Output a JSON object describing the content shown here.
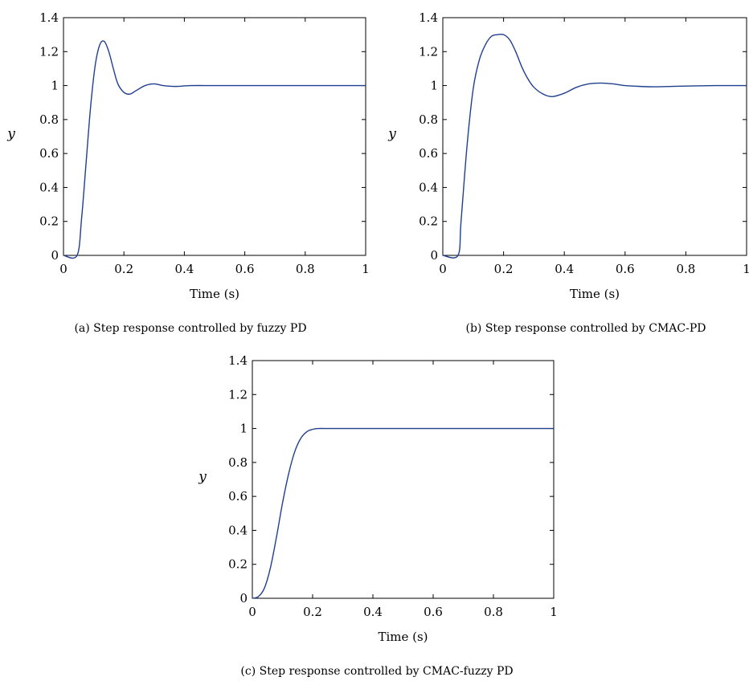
{
  "chart_data": [
    {
      "type": "line",
      "xlabel": "Time (s)",
      "ylabel": "y",
      "xlim": [
        0,
        1
      ],
      "ylim": [
        0,
        1.4
      ],
      "xticks": [
        "0",
        "0.2",
        "0.4",
        "0.6",
        "0.8",
        "1"
      ],
      "yticks": [
        "0",
        "0.2",
        "0.4",
        "0.6",
        "0.8",
        "1",
        "1.2",
        "1.4"
      ],
      "caption": "(a)  Step response controlled by fuzzy PD",
      "line_color": "#1f3f8f",
      "series": [
        {
          "x": [
            0,
            0.045,
            0.06,
            0.075,
            0.09,
            0.105,
            0.12,
            0.135,
            0.15,
            0.165,
            0.18,
            0.2,
            0.22,
            0.24,
            0.27,
            0.3,
            0.33,
            0.37,
            0.42,
            0.5,
            0.6,
            0.7,
            0.8,
            0.9,
            1.0
          ],
          "y": [
            0,
            0,
            0.22,
            0.55,
            0.88,
            1.12,
            1.24,
            1.26,
            1.2,
            1.1,
            1.01,
            0.96,
            0.95,
            0.97,
            1.0,
            1.01,
            1.0,
            0.995,
            1.0,
            1.0,
            1.0,
            1.0,
            1.0,
            1.0,
            1.0
          ]
        }
      ]
    },
    {
      "type": "line",
      "xlabel": "Time (s)",
      "ylabel": "y",
      "xlim": [
        0,
        1
      ],
      "ylim": [
        0,
        1.4
      ],
      "xticks": [
        "0",
        "0.2",
        "0.4",
        "0.6",
        "0.8",
        "1"
      ],
      "yticks": [
        "0",
        "0.2",
        "0.4",
        "0.6",
        "0.8",
        "1",
        "1.2",
        "1.4"
      ],
      "caption": "(b)  Step response controlled by CMAC-PD",
      "line_color": "#1f3f8f",
      "series": [
        {
          "x": [
            0,
            0.05,
            0.06,
            0.08,
            0.1,
            0.12,
            0.14,
            0.16,
            0.18,
            0.2,
            0.22,
            0.24,
            0.26,
            0.28,
            0.3,
            0.33,
            0.36,
            0.4,
            0.44,
            0.48,
            0.52,
            0.56,
            0.6,
            0.65,
            0.7,
            0.8,
            0.9,
            1.0
          ],
          "y": [
            0,
            0,
            0.2,
            0.65,
            0.98,
            1.15,
            1.24,
            1.29,
            1.3,
            1.3,
            1.27,
            1.2,
            1.11,
            1.04,
            0.99,
            0.95,
            0.935,
            0.955,
            0.99,
            1.01,
            1.015,
            1.01,
            1.0,
            0.995,
            0.993,
            0.997,
            1.0,
            1.0
          ]
        }
      ]
    },
    {
      "type": "line",
      "xlabel": "Time (s)",
      "ylabel": "y",
      "xlim": [
        0,
        1
      ],
      "ylim": [
        0,
        1.4
      ],
      "xticks": [
        "0",
        "0.2",
        "0.4",
        "0.6",
        "0.8",
        "1"
      ],
      "yticks": [
        "0",
        "0.2",
        "0.4",
        "0.6",
        "0.8",
        "1",
        "1.2",
        "1.4"
      ],
      "caption": "(c)  Step response controlled by CMAC-fuzzy PD",
      "line_color": "#1f3f8f",
      "series": [
        {
          "x": [
            0,
            0.02,
            0.04,
            0.06,
            0.08,
            0.1,
            0.12,
            0.14,
            0.16,
            0.18,
            0.2,
            0.22,
            0.25,
            0.3,
            0.4,
            0.5,
            0.6,
            0.8,
            1.0
          ],
          "y": [
            0,
            0.01,
            0.06,
            0.18,
            0.36,
            0.56,
            0.73,
            0.86,
            0.94,
            0.98,
            0.995,
            1.0,
            1.0,
            1.0,
            1.0,
            1.0,
            1.0,
            1.0,
            1.0
          ]
        }
      ]
    }
  ]
}
